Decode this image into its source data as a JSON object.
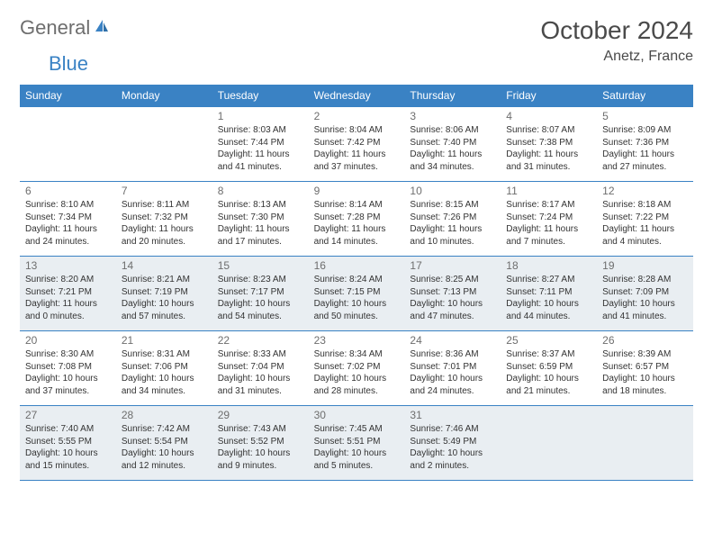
{
  "brand": {
    "text_gray": "General",
    "text_blue": "Blue"
  },
  "title": "October 2024",
  "location": "Anetz, France",
  "colors": {
    "header_bg": "#3a82c4",
    "header_fg": "#ffffff",
    "shade_bg": "#e9eef2",
    "rule": "#3a82c4",
    "text": "#333333",
    "muted": "#6e6e6e"
  },
  "day_headers": [
    "Sunday",
    "Monday",
    "Tuesday",
    "Wednesday",
    "Thursday",
    "Friday",
    "Saturday"
  ],
  "weeks": [
    {
      "shaded": false,
      "days": [
        {
          "n": "",
          "sr": "",
          "ss": "",
          "dl": ""
        },
        {
          "n": "",
          "sr": "",
          "ss": "",
          "dl": ""
        },
        {
          "n": "1",
          "sr": "Sunrise: 8:03 AM",
          "ss": "Sunset: 7:44 PM",
          "dl": "Daylight: 11 hours and 41 minutes."
        },
        {
          "n": "2",
          "sr": "Sunrise: 8:04 AM",
          "ss": "Sunset: 7:42 PM",
          "dl": "Daylight: 11 hours and 37 minutes."
        },
        {
          "n": "3",
          "sr": "Sunrise: 8:06 AM",
          "ss": "Sunset: 7:40 PM",
          "dl": "Daylight: 11 hours and 34 minutes."
        },
        {
          "n": "4",
          "sr": "Sunrise: 8:07 AM",
          "ss": "Sunset: 7:38 PM",
          "dl": "Daylight: 11 hours and 31 minutes."
        },
        {
          "n": "5",
          "sr": "Sunrise: 8:09 AM",
          "ss": "Sunset: 7:36 PM",
          "dl": "Daylight: 11 hours and 27 minutes."
        }
      ]
    },
    {
      "shaded": false,
      "days": [
        {
          "n": "6",
          "sr": "Sunrise: 8:10 AM",
          "ss": "Sunset: 7:34 PM",
          "dl": "Daylight: 11 hours and 24 minutes."
        },
        {
          "n": "7",
          "sr": "Sunrise: 8:11 AM",
          "ss": "Sunset: 7:32 PM",
          "dl": "Daylight: 11 hours and 20 minutes."
        },
        {
          "n": "8",
          "sr": "Sunrise: 8:13 AM",
          "ss": "Sunset: 7:30 PM",
          "dl": "Daylight: 11 hours and 17 minutes."
        },
        {
          "n": "9",
          "sr": "Sunrise: 8:14 AM",
          "ss": "Sunset: 7:28 PM",
          "dl": "Daylight: 11 hours and 14 minutes."
        },
        {
          "n": "10",
          "sr": "Sunrise: 8:15 AM",
          "ss": "Sunset: 7:26 PM",
          "dl": "Daylight: 11 hours and 10 minutes."
        },
        {
          "n": "11",
          "sr": "Sunrise: 8:17 AM",
          "ss": "Sunset: 7:24 PM",
          "dl": "Daylight: 11 hours and 7 minutes."
        },
        {
          "n": "12",
          "sr": "Sunrise: 8:18 AM",
          "ss": "Sunset: 7:22 PM",
          "dl": "Daylight: 11 hours and 4 minutes."
        }
      ]
    },
    {
      "shaded": true,
      "days": [
        {
          "n": "13",
          "sr": "Sunrise: 8:20 AM",
          "ss": "Sunset: 7:21 PM",
          "dl": "Daylight: 11 hours and 0 minutes."
        },
        {
          "n": "14",
          "sr": "Sunrise: 8:21 AM",
          "ss": "Sunset: 7:19 PM",
          "dl": "Daylight: 10 hours and 57 minutes."
        },
        {
          "n": "15",
          "sr": "Sunrise: 8:23 AM",
          "ss": "Sunset: 7:17 PM",
          "dl": "Daylight: 10 hours and 54 minutes."
        },
        {
          "n": "16",
          "sr": "Sunrise: 8:24 AM",
          "ss": "Sunset: 7:15 PM",
          "dl": "Daylight: 10 hours and 50 minutes."
        },
        {
          "n": "17",
          "sr": "Sunrise: 8:25 AM",
          "ss": "Sunset: 7:13 PM",
          "dl": "Daylight: 10 hours and 47 minutes."
        },
        {
          "n": "18",
          "sr": "Sunrise: 8:27 AM",
          "ss": "Sunset: 7:11 PM",
          "dl": "Daylight: 10 hours and 44 minutes."
        },
        {
          "n": "19",
          "sr": "Sunrise: 8:28 AM",
          "ss": "Sunset: 7:09 PM",
          "dl": "Daylight: 10 hours and 41 minutes."
        }
      ]
    },
    {
      "shaded": false,
      "days": [
        {
          "n": "20",
          "sr": "Sunrise: 8:30 AM",
          "ss": "Sunset: 7:08 PM",
          "dl": "Daylight: 10 hours and 37 minutes."
        },
        {
          "n": "21",
          "sr": "Sunrise: 8:31 AM",
          "ss": "Sunset: 7:06 PM",
          "dl": "Daylight: 10 hours and 34 minutes."
        },
        {
          "n": "22",
          "sr": "Sunrise: 8:33 AM",
          "ss": "Sunset: 7:04 PM",
          "dl": "Daylight: 10 hours and 31 minutes."
        },
        {
          "n": "23",
          "sr": "Sunrise: 8:34 AM",
          "ss": "Sunset: 7:02 PM",
          "dl": "Daylight: 10 hours and 28 minutes."
        },
        {
          "n": "24",
          "sr": "Sunrise: 8:36 AM",
          "ss": "Sunset: 7:01 PM",
          "dl": "Daylight: 10 hours and 24 minutes."
        },
        {
          "n": "25",
          "sr": "Sunrise: 8:37 AM",
          "ss": "Sunset: 6:59 PM",
          "dl": "Daylight: 10 hours and 21 minutes."
        },
        {
          "n": "26",
          "sr": "Sunrise: 8:39 AM",
          "ss": "Sunset: 6:57 PM",
          "dl": "Daylight: 10 hours and 18 minutes."
        }
      ]
    },
    {
      "shaded": true,
      "days": [
        {
          "n": "27",
          "sr": "Sunrise: 7:40 AM",
          "ss": "Sunset: 5:55 PM",
          "dl": "Daylight: 10 hours and 15 minutes."
        },
        {
          "n": "28",
          "sr": "Sunrise: 7:42 AM",
          "ss": "Sunset: 5:54 PM",
          "dl": "Daylight: 10 hours and 12 minutes."
        },
        {
          "n": "29",
          "sr": "Sunrise: 7:43 AM",
          "ss": "Sunset: 5:52 PM",
          "dl": "Daylight: 10 hours and 9 minutes."
        },
        {
          "n": "30",
          "sr": "Sunrise: 7:45 AM",
          "ss": "Sunset: 5:51 PM",
          "dl": "Daylight: 10 hours and 5 minutes."
        },
        {
          "n": "31",
          "sr": "Sunrise: 7:46 AM",
          "ss": "Sunset: 5:49 PM",
          "dl": "Daylight: 10 hours and 2 minutes."
        },
        {
          "n": "",
          "sr": "",
          "ss": "",
          "dl": ""
        },
        {
          "n": "",
          "sr": "",
          "ss": "",
          "dl": ""
        }
      ]
    }
  ]
}
